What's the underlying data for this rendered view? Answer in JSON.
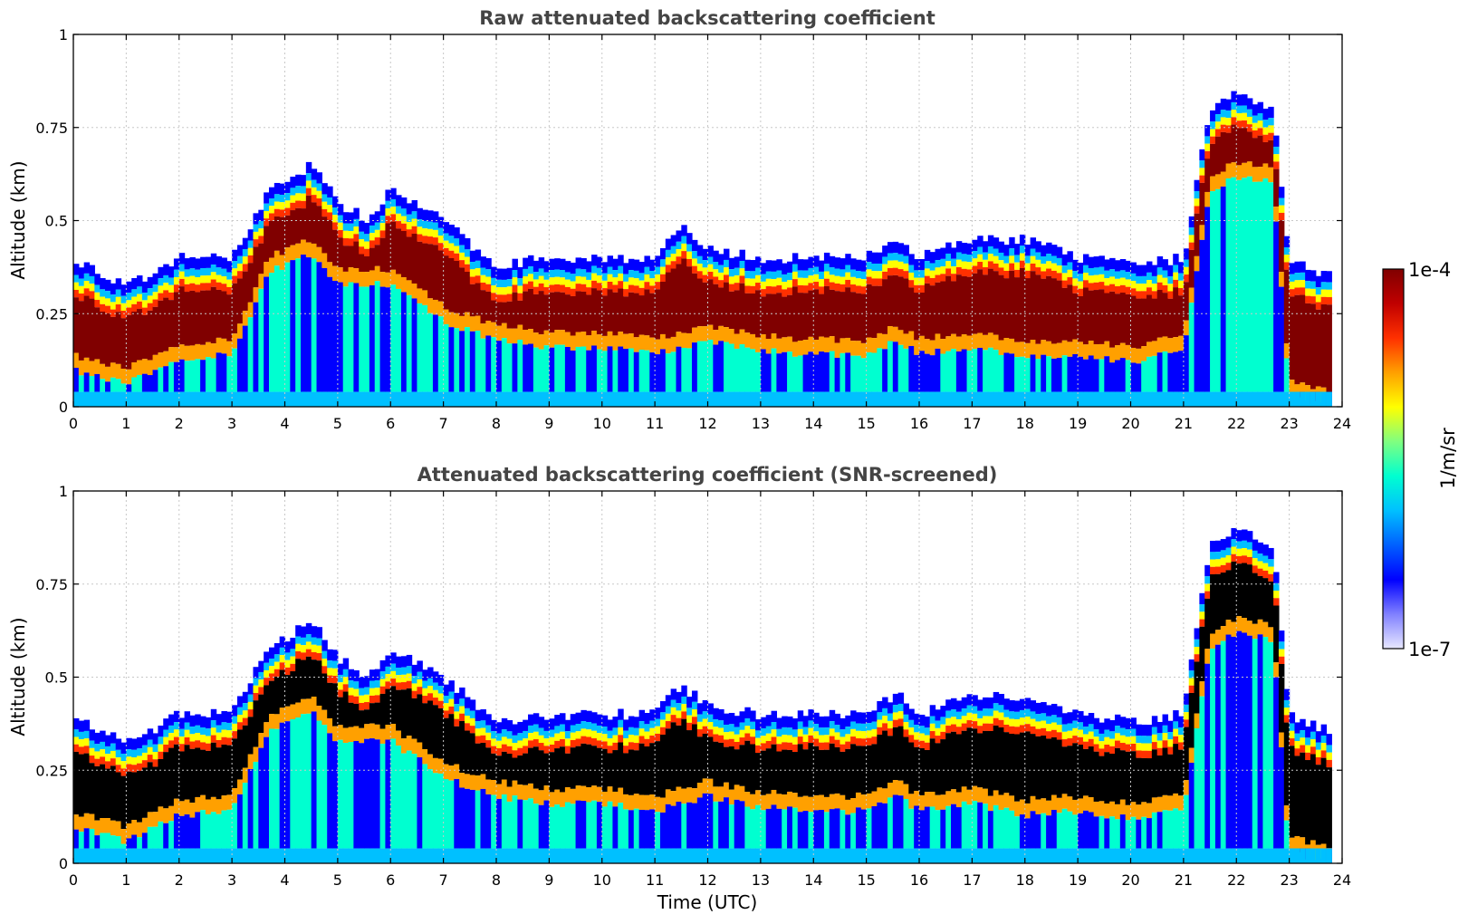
{
  "chart_data": [
    {
      "type": "heatmap",
      "title": "Raw attenuated backscattering coefficient",
      "xlabel": "",
      "ylabel": "Altitude (km)",
      "xlim": [
        0,
        24
      ],
      "ylim": [
        0,
        1
      ],
      "xticks": [
        "0",
        "1",
        "2",
        "3",
        "4",
        "5",
        "6",
        "7",
        "8",
        "9",
        "10",
        "11",
        "12",
        "13",
        "14",
        "15",
        "16",
        "17",
        "18",
        "19",
        "20",
        "21",
        "22",
        "23",
        "24"
      ],
      "yticks": [
        "0",
        "0.25",
        "0.5",
        "0.75",
        "1"
      ],
      "grid": true,
      "snr_screened": false,
      "layer_top_km": [
        [
          0,
          0.4
        ],
        [
          1,
          0.32
        ],
        [
          2,
          0.4
        ],
        [
          3,
          0.4
        ],
        [
          3.7,
          0.58
        ],
        [
          4.5,
          0.65
        ],
        [
          5,
          0.55
        ],
        [
          5.6,
          0.5
        ],
        [
          6,
          0.58
        ],
        [
          7,
          0.5
        ],
        [
          8,
          0.38
        ],
        [
          9,
          0.4
        ],
        [
          10,
          0.4
        ],
        [
          11,
          0.4
        ],
        [
          11.5,
          0.48
        ],
        [
          12,
          0.42
        ],
        [
          13,
          0.4
        ],
        [
          14,
          0.4
        ],
        [
          15,
          0.4
        ],
        [
          15.6,
          0.46
        ],
        [
          16,
          0.4
        ],
        [
          17,
          0.45
        ],
        [
          18,
          0.45
        ],
        [
          19,
          0.4
        ],
        [
          20,
          0.38
        ],
        [
          21,
          0.4
        ],
        [
          21.5,
          0.8
        ],
        [
          22,
          0.85
        ],
        [
          22.7,
          0.8
        ],
        [
          23,
          0.4
        ],
        [
          23.8,
          0.35
        ]
      ],
      "aerosol_core_km": [
        [
          0,
          0.22
        ],
        [
          1,
          0.18
        ],
        [
          2,
          0.25
        ],
        [
          3,
          0.26
        ],
        [
          3.7,
          0.48
        ],
        [
          4.5,
          0.53
        ],
        [
          5,
          0.45
        ],
        [
          6,
          0.45
        ],
        [
          7,
          0.35
        ],
        [
          8,
          0.3
        ],
        [
          9,
          0.28
        ],
        [
          10,
          0.28
        ],
        [
          11,
          0.26
        ],
        [
          12,
          0.3
        ],
        [
          13,
          0.27
        ],
        [
          14,
          0.26
        ],
        [
          15,
          0.26
        ],
        [
          15.6,
          0.3
        ],
        [
          16,
          0.26
        ],
        [
          17,
          0.28
        ],
        [
          18,
          0.25
        ],
        [
          19,
          0.26
        ],
        [
          20,
          0.24
        ],
        [
          21,
          0.27
        ],
        [
          21.5,
          0.7
        ],
        [
          22,
          0.74
        ],
        [
          22.7,
          0.72
        ],
        [
          23,
          0.15
        ],
        [
          23.8,
          0.12
        ]
      ]
    },
    {
      "type": "heatmap",
      "title": "Attenuated backscattering coefficient (SNR-screened)",
      "xlabel": "Time (UTC)",
      "ylabel": "Altitude (km)",
      "xlim": [
        0,
        24
      ],
      "ylim": [
        0,
        1
      ],
      "xticks": [
        "0",
        "1",
        "2",
        "3",
        "4",
        "5",
        "6",
        "7",
        "8",
        "9",
        "10",
        "11",
        "12",
        "13",
        "14",
        "15",
        "16",
        "17",
        "18",
        "19",
        "20",
        "21",
        "22",
        "23",
        "24"
      ],
      "yticks": [
        "0",
        "0.25",
        "0.5",
        "0.75",
        "1"
      ],
      "grid": true,
      "snr_screened": true,
      "layer_top_km": [
        [
          0,
          0.4
        ],
        [
          1,
          0.32
        ],
        [
          2,
          0.4
        ],
        [
          3,
          0.4
        ],
        [
          3.7,
          0.58
        ],
        [
          4.5,
          0.65
        ],
        [
          5,
          0.55
        ],
        [
          5.6,
          0.5
        ],
        [
          6,
          0.58
        ],
        [
          7,
          0.5
        ],
        [
          8,
          0.38
        ],
        [
          9,
          0.4
        ],
        [
          10,
          0.4
        ],
        [
          11,
          0.4
        ],
        [
          11.5,
          0.48
        ],
        [
          12,
          0.42
        ],
        [
          13,
          0.4
        ],
        [
          14,
          0.4
        ],
        [
          15,
          0.4
        ],
        [
          15.6,
          0.46
        ],
        [
          16,
          0.4
        ],
        [
          17,
          0.45
        ],
        [
          18,
          0.45
        ],
        [
          19,
          0.4
        ],
        [
          20,
          0.38
        ],
        [
          21,
          0.4
        ],
        [
          21.5,
          0.85
        ],
        [
          22,
          0.9
        ],
        [
          22.7,
          0.85
        ],
        [
          23,
          0.4
        ],
        [
          23.8,
          0.35
        ]
      ],
      "aerosol_core_km": [
        [
          0,
          0.22
        ],
        [
          1,
          0.18
        ],
        [
          2,
          0.25
        ],
        [
          3,
          0.26
        ],
        [
          3.7,
          0.48
        ],
        [
          4.5,
          0.53
        ],
        [
          5,
          0.45
        ],
        [
          6,
          0.45
        ],
        [
          7,
          0.35
        ],
        [
          8,
          0.3
        ],
        [
          9,
          0.28
        ],
        [
          10,
          0.28
        ],
        [
          11,
          0.26
        ],
        [
          12,
          0.3
        ],
        [
          13,
          0.27
        ],
        [
          14,
          0.26
        ],
        [
          15,
          0.26
        ],
        [
          15.6,
          0.3
        ],
        [
          16,
          0.26
        ],
        [
          17,
          0.28
        ],
        [
          18,
          0.25
        ],
        [
          19,
          0.26
        ],
        [
          20,
          0.24
        ],
        [
          21,
          0.27
        ],
        [
          21.5,
          0.7
        ],
        [
          22,
          0.74
        ],
        [
          22.7,
          0.72
        ],
        [
          23,
          0.15
        ],
        [
          23.8,
          0.12
        ]
      ]
    }
  ],
  "colorbar": {
    "label": "1/m/sr",
    "max_label": "1e-4",
    "min_label": "1e-7",
    "colormap": [
      "#e8e8ff",
      "#8080ff",
      "#0000ff",
      "#0060ff",
      "#00c0ff",
      "#00ffd0",
      "#80ff80",
      "#ffff00",
      "#ffa000",
      "#ff3000",
      "#c00000",
      "#800000"
    ]
  }
}
